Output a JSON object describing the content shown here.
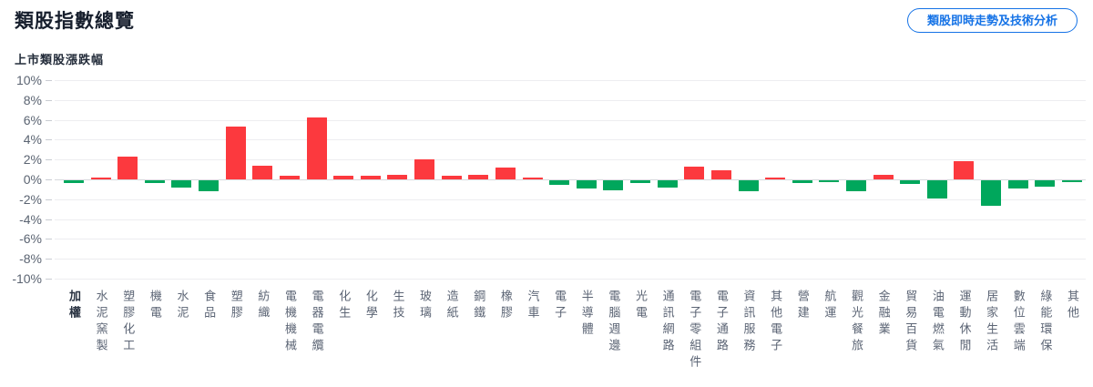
{
  "header": {
    "title": "類股指數總覽",
    "action_button_label": "類股即時走勢及技術分析"
  },
  "chart": {
    "subtitle": "上市類股漲跌幅"
  },
  "colors": {
    "up_red": "#fc393e",
    "down_green": "#00a75c",
    "accent_blue": "#1673e6",
    "gridline": "#ededf0",
    "zero_line": "#d7d9dd",
    "axis_text": "#5b6472"
  },
  "chart_data": {
    "type": "bar",
    "title": "上市類股漲跌幅",
    "xlabel": "",
    "ylabel": "",
    "ylim": [
      -10,
      10
    ],
    "grid": true,
    "legend": "none",
    "y_tick_labels": [
      "10%",
      "8%",
      "6%",
      "4%",
      "2%",
      "0%",
      "-2%",
      "-4%",
      "-6%",
      "-8%",
      "-10%"
    ],
    "categories": [
      "加權",
      "水泥窯製",
      "塑膠化工",
      "機電",
      "水泥",
      "食品",
      "塑膠",
      "紡織",
      "電機機械",
      "電器電纜",
      "化生",
      "化學",
      "生技",
      "玻璃",
      "造紙",
      "鋼鐵",
      "橡膠",
      "汽車",
      "電子",
      "半導體",
      "電腦週邊",
      "光電",
      "通訊網路",
      "電子零組件",
      "電子通路",
      "資訊服務",
      "其他電子",
      "營建",
      "航運",
      "觀光餐旅",
      "金融業",
      "貿易百貨",
      "油電燃氣",
      "運動休閒",
      "居家生活",
      "數位雲端",
      "綠能環保",
      "其他"
    ],
    "values": [
      -0.3,
      0.2,
      2.3,
      -0.3,
      -0.7,
      -1.1,
      5.3,
      1.4,
      0.4,
      6.2,
      0.4,
      0.35,
      0.45,
      2.0,
      0.4,
      0.45,
      1.2,
      0.15,
      -0.5,
      -0.8,
      -1.0,
      -0.3,
      -0.7,
      1.3,
      0.9,
      -1.1,
      0.15,
      -0.3,
      -0.2,
      -1.1,
      0.5,
      -0.35,
      -1.8,
      1.8,
      -2.6,
      -0.85,
      -0.6,
      -0.2
    ],
    "color_rule": "positive bars red (#fc393e), negative bars green (#00a75c)",
    "emphasized_category": "加權"
  }
}
